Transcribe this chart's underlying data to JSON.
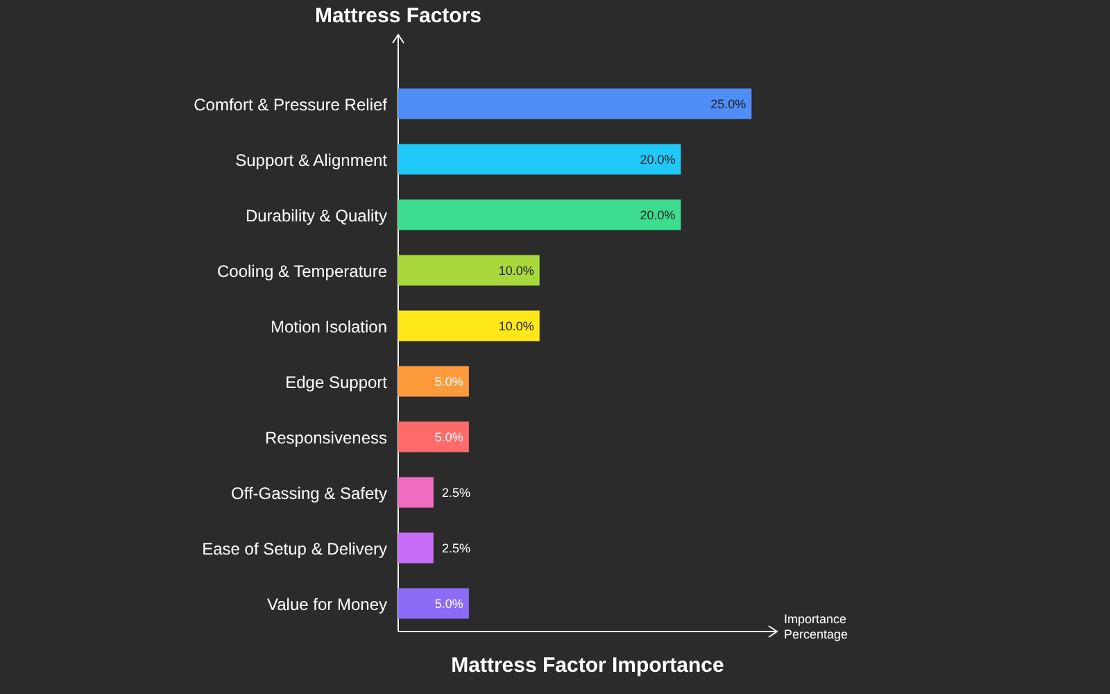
{
  "chart_data": {
    "type": "bar",
    "orientation": "horizontal",
    "title": "Mattress Factor Importance",
    "ylabel": "Mattress Factors",
    "xlabel": "Importance Percentage",
    "categories": [
      "Comfort & Pressure Relief",
      "Support & Alignment",
      "Durability & Quality",
      "Cooling & Temperature",
      "Motion Isolation",
      "Edge Support",
      "Responsiveness",
      "Off-Gassing & Safety",
      "Ease of Setup & Delivery",
      "Value for Money"
    ],
    "values": [
      25,
      20,
      20,
      10,
      10,
      5,
      5,
      2.5,
      2.5,
      5
    ],
    "value_labels": [
      "25.0%",
      "20.0%",
      "20.0%",
      "10.0%",
      "10.0%",
      "5.0%",
      "5.0%",
      "2.5%",
      "2.5%",
      "5.0%"
    ],
    "colors": [
      "#4f8ef7",
      "#1ec8f8",
      "#3ddc8f",
      "#a8d83c",
      "#ffe81a",
      "#ff9a3c",
      "#ff6b6b",
      "#f06cc0",
      "#c76cf7",
      "#8b6cf7"
    ],
    "xlim": [
      0,
      26.8
    ],
    "tick_labels": "y"
  }
}
